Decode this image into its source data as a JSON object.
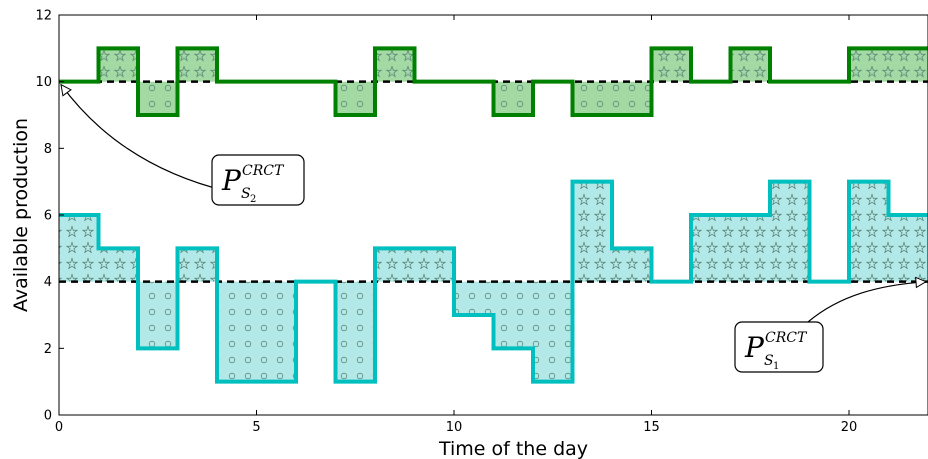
{
  "chart_data": {
    "type": "line",
    "xlabel": "Time of the day",
    "ylabel": "Available production",
    "xlim": [
      0,
      22
    ],
    "ylim": [
      0,
      12
    ],
    "xticks": [
      0,
      5,
      10,
      15,
      20
    ],
    "yticks": [
      0,
      2,
      4,
      6,
      8,
      10,
      12
    ],
    "grid": false,
    "series": [
      {
        "key": "s2",
        "color": "#008000",
        "fill": "#a3d9a3",
        "reference": 10,
        "x": [
          0,
          1,
          2,
          3,
          4,
          5,
          6,
          7,
          8,
          9,
          10,
          11,
          12,
          13,
          14,
          15,
          16,
          17,
          18,
          19,
          20,
          21
        ],
        "values": [
          10,
          11,
          9,
          11,
          10,
          10,
          10,
          9,
          11,
          10,
          10,
          9,
          10,
          9,
          9,
          11,
          10,
          11,
          10,
          10,
          11,
          11
        ]
      },
      {
        "key": "s1",
        "color": "#00bfbf",
        "fill": "#b3e8e8",
        "reference": 4,
        "x": [
          0,
          1,
          2,
          3,
          4,
          5,
          6,
          7,
          8,
          9,
          10,
          11,
          12,
          13,
          14,
          15,
          16,
          17,
          18,
          19,
          20,
          21
        ],
        "values": [
          6,
          5,
          2,
          5,
          1,
          1,
          4,
          1,
          5,
          5,
          3,
          2,
          1,
          7,
          5,
          4,
          6,
          6,
          7,
          4,
          7,
          6
        ]
      }
    ],
    "annotations": [
      {
        "main": "P",
        "sup": "CRCT",
        "sub": "S",
        "subsub": "2",
        "target_x": 0,
        "target_y": 10
      },
      {
        "main": "P",
        "sup": "CRCT",
        "sub": "S",
        "subsub": "1",
        "target_x": 22,
        "target_y": 4
      }
    ]
  }
}
